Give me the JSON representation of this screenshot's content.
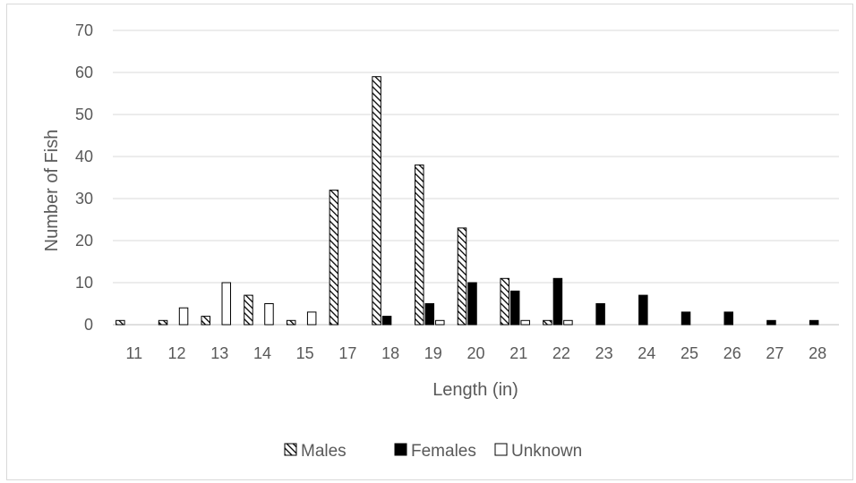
{
  "chart_data": {
    "type": "bar",
    "xlabel": "Length (in)",
    "ylabel": "Number of Fish",
    "ylim": [
      0,
      70
    ],
    "yticks": [
      0,
      10,
      20,
      30,
      40,
      50,
      60,
      70
    ],
    "grid": true,
    "legend_position": "bottom",
    "categories": [
      "11",
      "12",
      "13",
      "14",
      "15",
      "17",
      "18",
      "19",
      "20",
      "21",
      "22",
      "23",
      "24",
      "25",
      "26",
      "27",
      "28"
    ],
    "series": [
      {
        "name": "Males",
        "fill": "hatched",
        "color": "#000000",
        "values": [
          1,
          1,
          2,
          7,
          1,
          32,
          59,
          38,
          23,
          11,
          1,
          0,
          0,
          0,
          0,
          0,
          0
        ]
      },
      {
        "name": "Females",
        "fill": "solid",
        "color": "#000000",
        "values": [
          0,
          0,
          0,
          0,
          0,
          0,
          2,
          5,
          10,
          8,
          11,
          5,
          7,
          3,
          3,
          1,
          1
        ]
      },
      {
        "name": "Unknown",
        "fill": "outline",
        "color": "#ffffff",
        "values": [
          0,
          4,
          10,
          5,
          3,
          0,
          0,
          1,
          0,
          1,
          1,
          0,
          0,
          0,
          0,
          0,
          0
        ]
      }
    ]
  }
}
